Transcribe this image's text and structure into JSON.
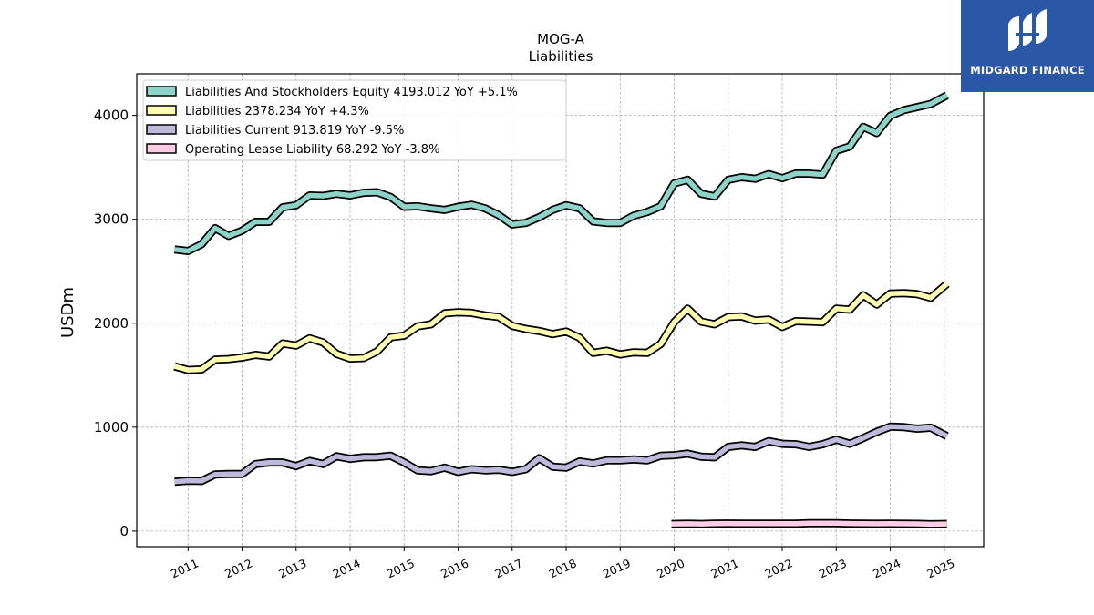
{
  "logo": {
    "text": "MIDGARD FINANCE",
    "background": "#2a57a6"
  },
  "chart_data": {
    "type": "line",
    "title": "MOG-A",
    "subtitle": "Liabilities",
    "xlabel": "",
    "ylabel": "USDm",
    "xlim": [
      2010.05,
      2025.73
    ],
    "ylim": [
      -150,
      4400
    ],
    "yticks": [
      0,
      1000,
      2000,
      3000,
      4000
    ],
    "xticks": [
      "2011",
      "2012",
      "2013",
      "2014",
      "2015",
      "2016",
      "2017",
      "2018",
      "2019",
      "2020",
      "2021",
      "2022",
      "2023",
      "2024",
      "2025"
    ],
    "grid": true,
    "legend_position": "top-left",
    "series": [
      {
        "name": "Liabilities And Stockholders Equity",
        "legend": "Liabilities And Stockholders Equity  4193.012 YoY +5.1%",
        "color": "#8dd3c7",
        "x": [
          2010.75,
          2011.0,
          2011.25,
          2011.5,
          2011.75,
          2012.0,
          2012.25,
          2012.5,
          2012.75,
          2013.0,
          2013.25,
          2013.5,
          2013.75,
          2014.0,
          2014.25,
          2014.5,
          2014.75,
          2015.0,
          2015.25,
          2015.5,
          2015.75,
          2016.0,
          2016.25,
          2016.5,
          2016.75,
          2017.0,
          2017.25,
          2017.5,
          2017.75,
          2018.0,
          2018.25,
          2018.5,
          2018.75,
          2019.0,
          2019.25,
          2019.5,
          2019.75,
          2020.0,
          2020.25,
          2020.5,
          2020.75,
          2021.0,
          2021.25,
          2021.5,
          2021.75,
          2022.0,
          2022.25,
          2022.5,
          2022.75,
          2023.0,
          2023.25,
          2023.5,
          2023.75,
          2024.0,
          2024.25,
          2024.5,
          2024.75,
          2025.05
        ],
        "values": [
          2710,
          2695,
          2760,
          2915,
          2840,
          2890,
          2975,
          2975,
          3115,
          3135,
          3230,
          3225,
          3245,
          3230,
          3255,
          3260,
          3215,
          3120,
          3125,
          3105,
          3090,
          3120,
          3140,
          3105,
          3040,
          2950,
          2965,
          3020,
          3090,
          3135,
          3105,
          2980,
          2965,
          2965,
          3035,
          3070,
          3125,
          3345,
          3380,
          3245,
          3220,
          3380,
          3405,
          3390,
          3435,
          3395,
          3440,
          3440,
          3430,
          3660,
          3700,
          3890,
          3830,
          3995,
          4050,
          4080,
          4110,
          4193
        ]
      },
      {
        "name": "Liabilities",
        "legend": "Liabilities  2378.234 YoY +4.3%",
        "color": "#ffffb3",
        "x": [
          2010.75,
          2011.0,
          2011.25,
          2011.5,
          2011.75,
          2012.0,
          2012.25,
          2012.5,
          2012.75,
          2013.0,
          2013.25,
          2013.5,
          2013.75,
          2014.0,
          2014.25,
          2014.5,
          2014.75,
          2015.0,
          2015.25,
          2015.5,
          2015.75,
          2016.0,
          2016.25,
          2016.5,
          2016.75,
          2017.0,
          2017.25,
          2017.5,
          2017.75,
          2018.0,
          2018.25,
          2018.5,
          2018.75,
          2019.0,
          2019.25,
          2019.5,
          2019.75,
          2020.0,
          2020.25,
          2020.5,
          2020.75,
          2021.0,
          2021.25,
          2021.5,
          2021.75,
          2022.0,
          2022.25,
          2022.5,
          2022.75,
          2023.0,
          2023.25,
          2023.5,
          2023.75,
          2024.0,
          2024.25,
          2024.5,
          2024.75,
          2025.05
        ],
        "values": [
          1585,
          1550,
          1555,
          1650,
          1655,
          1670,
          1695,
          1680,
          1805,
          1785,
          1855,
          1815,
          1705,
          1660,
          1665,
          1730,
          1865,
          1880,
          1970,
          1990,
          2095,
          2105,
          2100,
          2075,
          2060,
          1975,
          1945,
          1925,
          1895,
          1920,
          1860,
          1715,
          1735,
          1700,
          1720,
          1715,
          1800,
          2010,
          2140,
          2015,
          1990,
          2060,
          2065,
          2025,
          2035,
          1965,
          2020,
          2015,
          2010,
          2140,
          2130,
          2270,
          2180,
          2285,
          2290,
          2280,
          2245,
          2378
        ]
      },
      {
        "name": "Liabilities Current",
        "legend": "Liabilities Current  913.819 YoY -9.5%",
        "color": "#bebada",
        "x": [
          2010.75,
          2011.0,
          2011.25,
          2011.5,
          2011.75,
          2012.0,
          2012.25,
          2012.5,
          2012.75,
          2013.0,
          2013.25,
          2013.5,
          2013.75,
          2014.0,
          2014.25,
          2014.5,
          2014.75,
          2015.0,
          2015.25,
          2015.5,
          2015.75,
          2016.0,
          2016.25,
          2016.5,
          2016.75,
          2017.0,
          2017.25,
          2017.5,
          2017.75,
          2018.0,
          2018.25,
          2018.5,
          2018.75,
          2019.0,
          2019.25,
          2019.5,
          2019.75,
          2020.0,
          2020.25,
          2020.5,
          2020.75,
          2021.0,
          2021.25,
          2021.5,
          2021.75,
          2022.0,
          2022.25,
          2022.5,
          2022.75,
          2023.0,
          2023.25,
          2023.5,
          2023.75,
          2024.0,
          2024.25,
          2024.5,
          2024.75,
          2025.05
        ],
        "values": [
          475,
          485,
          482,
          545,
          550,
          550,
          645,
          660,
          660,
          625,
          675,
          645,
          720,
          695,
          710,
          712,
          725,
          660,
          585,
          577,
          610,
          570,
          595,
          585,
          590,
          570,
          595,
          700,
          620,
          610,
          670,
          650,
          680,
          680,
          690,
          680,
          725,
          730,
          745,
          715,
          710,
          810,
          825,
          810,
          865,
          840,
          835,
          810,
          835,
          880,
          840,
          895,
          955,
          1005,
          1000,
          985,
          995,
          914
        ]
      },
      {
        "name": "Operating Lease Liability",
        "legend": "Operating Lease Liability  68.292 YoY -3.8%",
        "color": "#fccde5",
        "x": [
          2019.95,
          2020.25,
          2020.5,
          2020.75,
          2021.0,
          2021.25,
          2021.5,
          2021.75,
          2022.0,
          2022.25,
          2022.5,
          2022.75,
          2023.0,
          2023.25,
          2023.5,
          2023.75,
          2024.0,
          2024.25,
          2024.5,
          2024.75,
          2025.05
        ],
        "values": [
          68,
          70,
          68,
          72,
          73,
          72,
          71,
          71,
          72,
          72,
          76,
          76,
          75,
          73,
          72,
          70,
          71,
          70,
          69,
          66,
          68
        ]
      }
    ]
  }
}
